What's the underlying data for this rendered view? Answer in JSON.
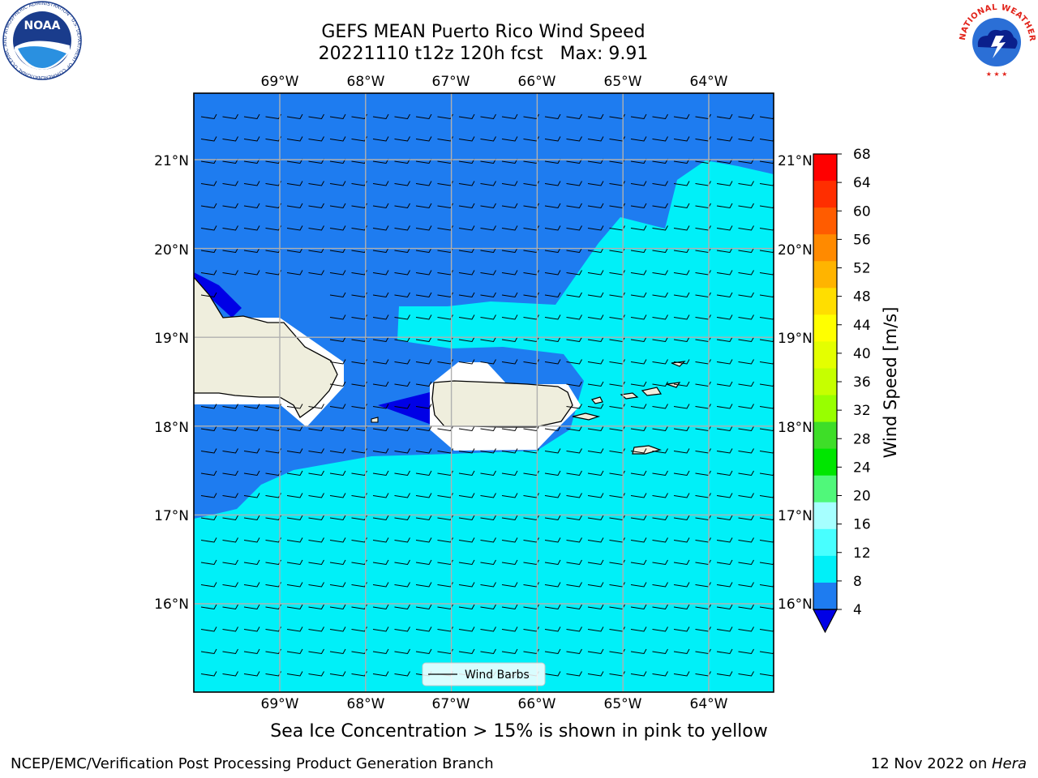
{
  "title": {
    "line1": "GEFS MEAN Puerto Rico Wind Speed",
    "line2": "20221110 t12z 120h fcst   Max: 9.91"
  },
  "map": {
    "lon_labels": [
      "69°W",
      "68°W",
      "67°W",
      "66°W",
      "65°W",
      "64°W"
    ],
    "lat_labels": [
      "21°N",
      "20°N",
      "19°N",
      "18°N",
      "17°N",
      "16°N"
    ],
    "lon_values": [
      -69,
      -68,
      -67,
      -66,
      -65,
      -64
    ],
    "lat_values": [
      21,
      20,
      19,
      18,
      17,
      16
    ],
    "legend_label": "Wind Barbs",
    "fill_colors": {
      "speed_4_8": "#1e7cf0",
      "speed_8_12": "#00f0f8",
      "speed_below_4": "#0000e6",
      "land": "#efeedd"
    }
  },
  "colorbar": {
    "label": "Wind Speed [m/s]",
    "ticks": [
      "68",
      "64",
      "60",
      "56",
      "52",
      "48",
      "44",
      "40",
      "36",
      "32",
      "28",
      "24",
      "20",
      "16",
      "12",
      "8",
      "4"
    ],
    "colors": [
      "#ff0000",
      "#ff2e00",
      "#ff5c00",
      "#ff8a00",
      "#ffb400",
      "#ffde00",
      "#ffff00",
      "#e4ff00",
      "#c6ff00",
      "#98ff00",
      "#3ede28",
      "#00e600",
      "#50f87a",
      "#a6ffff",
      "#48ffff",
      "#00f0f8",
      "#1e7cf0"
    ],
    "under_color": "#0000e6"
  },
  "footer": {
    "subtitle": "Sea Ice Concentration > 15% is shown in pink to yellow",
    "credit": "NCEP/EMC/Verification Post Processing Product Generation Branch",
    "date": "12 Nov 2022 on ",
    "machine": "Hera"
  },
  "logos": {
    "noaa_text": "NOAA",
    "noaa_ring": "NATIONAL OCEANIC AND ATMOSPHERIC ADMINISTRATION · U.S. DEPARTMENT OF COMMERCE",
    "nws_ring": "NATIONAL WEATHER SERVICE"
  }
}
